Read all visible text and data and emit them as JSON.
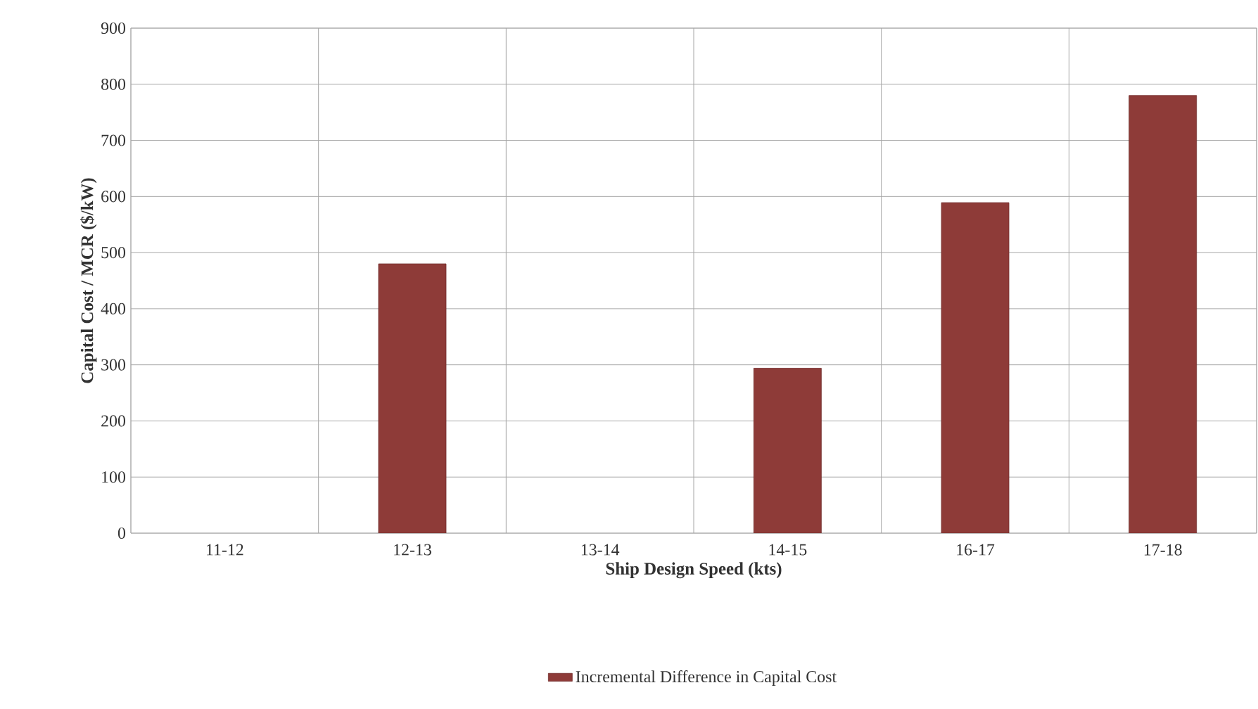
{
  "chart_data": {
    "type": "bar",
    "xlabel": "Ship Design Speed (kts)",
    "ylabel": "Capital Cost / MCR ($/kW)",
    "categories": [
      "11-12",
      "12-13",
      "13-14",
      "14-15",
      "16-17",
      "17-18"
    ],
    "series": [
      {
        "name": "Incremental Difference in Capital Cost",
        "color": "#8e3b38",
        "values": [
          null,
          480,
          null,
          294,
          589,
          780
        ]
      }
    ],
    "ylim": [
      0,
      900
    ],
    "yticks": [
      0,
      100,
      200,
      300,
      400,
      500,
      600,
      700,
      800,
      900
    ],
    "grid": true,
    "legend": "bottom"
  }
}
